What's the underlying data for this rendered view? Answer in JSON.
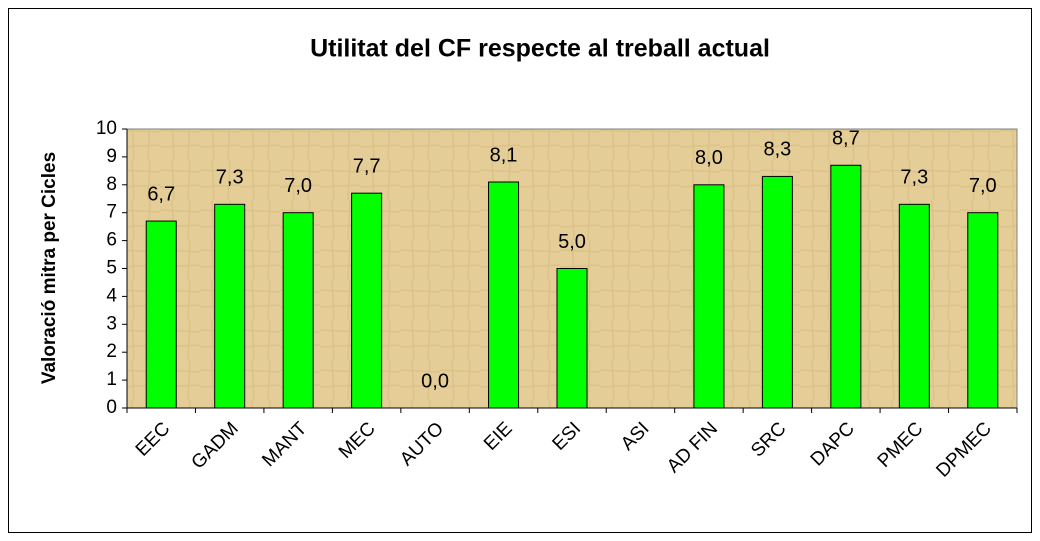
{
  "chart_data": {
    "type": "bar",
    "title": "Utilitat del CF respecte al treball actual",
    "y_label": "Valoració mitra per Cicles",
    "categories": [
      "EEC",
      "GADM",
      "MANT",
      "MEC",
      "AUTO",
      "EIE",
      "ESI",
      "ASI",
      "AD FIN",
      "SRC",
      "DAPC",
      "PMEC",
      "DPMEC"
    ],
    "values": [
      6.7,
      7.3,
      7.0,
      7.7,
      0.0,
      8.1,
      5.0,
      null,
      8.0,
      8.3,
      8.7,
      7.3,
      7.0
    ],
    "value_labels": [
      "6,7",
      "7,3",
      "7,0",
      "7,7",
      "0,0",
      "8,1",
      "5,0",
      null,
      "8,0",
      "8,3",
      "8,7",
      "7,3",
      "7,0"
    ],
    "color": "#00ff00",
    "ylim": [
      0,
      10
    ],
    "yticks": [
      0,
      1,
      2,
      3,
      4,
      5,
      6,
      7,
      8,
      9,
      10
    ],
    "grid": false
  }
}
